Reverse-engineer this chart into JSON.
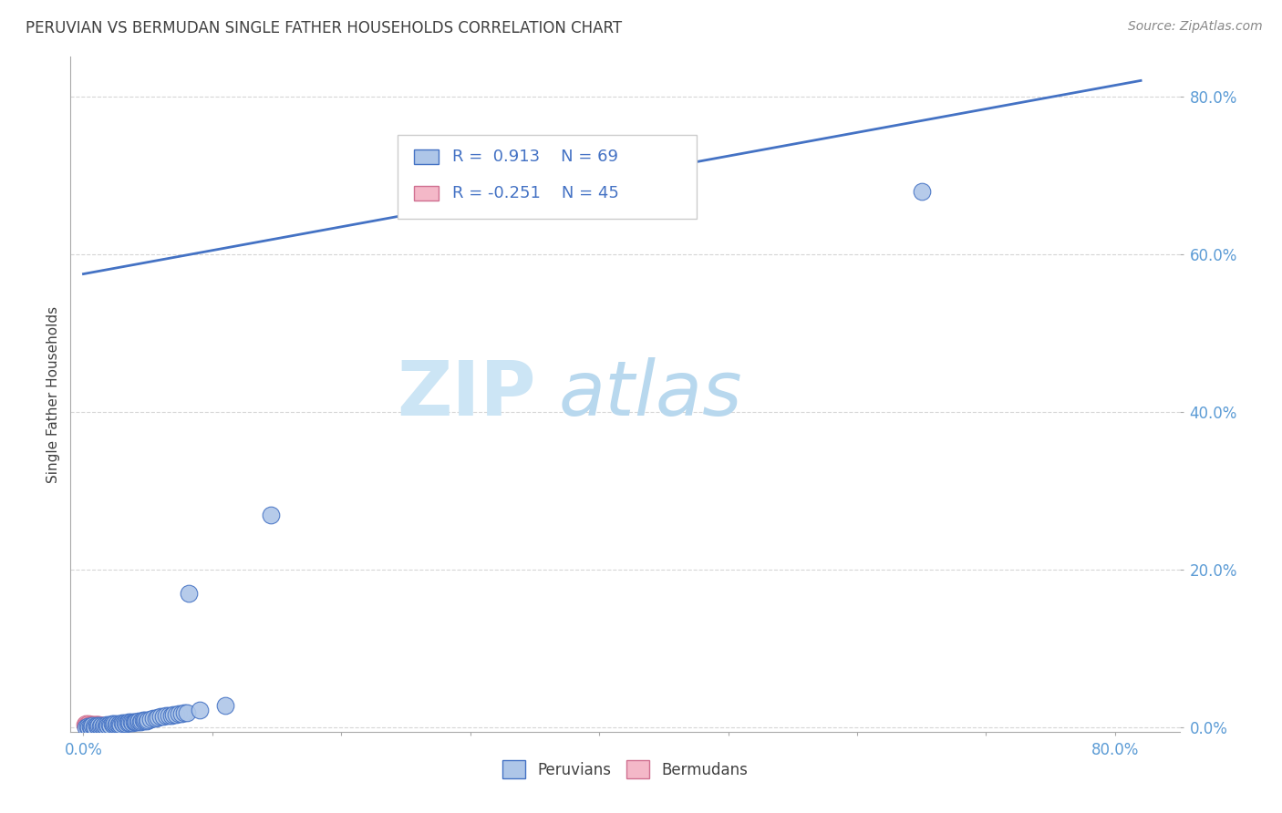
{
  "title": "PERUVIAN VS BERMUDAN SINGLE FATHER HOUSEHOLDS CORRELATION CHART",
  "source": "Source: ZipAtlas.com",
  "ylabel": "Single Father Households",
  "xlim": [
    -0.01,
    0.85
  ],
  "ylim": [
    -0.005,
    0.85
  ],
  "xtick_positions": [
    0.0,
    0.1,
    0.2,
    0.3,
    0.4,
    0.5,
    0.6,
    0.7,
    0.8
  ],
  "xtick_labels": [
    "0.0%",
    "",
    "",
    "",
    "",
    "",
    "",
    "",
    "80.0%"
  ],
  "ytick_positions": [
    0.0,
    0.2,
    0.4,
    0.6,
    0.8
  ],
  "ytick_labels": [
    "0.0%",
    "20.0%",
    "40.0%",
    "60.0%",
    "80.0%"
  ],
  "peruvian_R": 0.913,
  "peruvian_N": 69,
  "bermudan_R": -0.251,
  "bermudan_N": 45,
  "peruvian_color": "#aec6e8",
  "peruvian_edge_color": "#4472c4",
  "bermudan_color": "#f4b8c8",
  "bermudan_edge_color": "#d07090",
  "line_color": "#4472c4",
  "title_color": "#404040",
  "tick_color": "#5b9bd5",
  "ylabel_color": "#404040",
  "background_color": "#ffffff",
  "grid_color": "#cccccc",
  "watermark_zip_color": "#cce5f5",
  "watermark_atlas_color": "#b8d8ee",
  "legend_box_color": "#4472c4",
  "legend_r_color": "#4472c4",
  "peruvians_scatter": [
    [
      0.002,
      0.001
    ],
    [
      0.003,
      0.002
    ],
    [
      0.004,
      0.001
    ],
    [
      0.005,
      0.002
    ],
    [
      0.006,
      0.001
    ],
    [
      0.007,
      0.003
    ],
    [
      0.008,
      0.002
    ],
    [
      0.009,
      0.001
    ],
    [
      0.01,
      0.003
    ],
    [
      0.011,
      0.002
    ],
    [
      0.012,
      0.003
    ],
    [
      0.013,
      0.002
    ],
    [
      0.014,
      0.003
    ],
    [
      0.015,
      0.002
    ],
    [
      0.016,
      0.003
    ],
    [
      0.017,
      0.002
    ],
    [
      0.018,
      0.004
    ],
    [
      0.019,
      0.003
    ],
    [
      0.02,
      0.004
    ],
    [
      0.021,
      0.003
    ],
    [
      0.022,
      0.005
    ],
    [
      0.023,
      0.004
    ],
    [
      0.024,
      0.005
    ],
    [
      0.025,
      0.004
    ],
    [
      0.026,
      0.005
    ],
    [
      0.027,
      0.004
    ],
    [
      0.028,
      0.005
    ],
    [
      0.029,
      0.004
    ],
    [
      0.03,
      0.006
    ],
    [
      0.031,
      0.005
    ],
    [
      0.032,
      0.006
    ],
    [
      0.033,
      0.005
    ],
    [
      0.034,
      0.006
    ],
    [
      0.035,
      0.007
    ],
    [
      0.036,
      0.006
    ],
    [
      0.037,
      0.007
    ],
    [
      0.038,
      0.006
    ],
    [
      0.039,
      0.007
    ],
    [
      0.04,
      0.008
    ],
    [
      0.041,
      0.007
    ],
    [
      0.042,
      0.008
    ],
    [
      0.043,
      0.009
    ],
    [
      0.044,
      0.008
    ],
    [
      0.045,
      0.009
    ],
    [
      0.046,
      0.01
    ],
    [
      0.047,
      0.009
    ],
    [
      0.048,
      0.01
    ],
    [
      0.049,
      0.009
    ],
    [
      0.05,
      0.01
    ],
    [
      0.052,
      0.011
    ],
    [
      0.054,
      0.012
    ],
    [
      0.056,
      0.012
    ],
    [
      0.058,
      0.013
    ],
    [
      0.06,
      0.014
    ],
    [
      0.062,
      0.014
    ],
    [
      0.064,
      0.015
    ],
    [
      0.066,
      0.016
    ],
    [
      0.068,
      0.016
    ],
    [
      0.07,
      0.017
    ],
    [
      0.072,
      0.017
    ],
    [
      0.074,
      0.018
    ],
    [
      0.076,
      0.018
    ],
    [
      0.078,
      0.019
    ],
    [
      0.08,
      0.019
    ],
    [
      0.09,
      0.023
    ],
    [
      0.11,
      0.028
    ],
    [
      0.145,
      0.27
    ],
    [
      0.082,
      0.17
    ],
    [
      0.65,
      0.68
    ]
  ],
  "bermudans_scatter": [
    [
      0.001,
      0.004
    ],
    [
      0.002,
      0.005
    ],
    [
      0.002,
      0.003
    ],
    [
      0.003,
      0.004
    ],
    [
      0.003,
      0.003
    ],
    [
      0.004,
      0.005
    ],
    [
      0.004,
      0.003
    ],
    [
      0.005,
      0.004
    ],
    [
      0.005,
      0.003
    ],
    [
      0.006,
      0.004
    ],
    [
      0.006,
      0.003
    ],
    [
      0.007,
      0.004
    ],
    [
      0.007,
      0.003
    ],
    [
      0.008,
      0.004
    ],
    [
      0.008,
      0.003
    ],
    [
      0.009,
      0.004
    ],
    [
      0.009,
      0.003
    ],
    [
      0.01,
      0.004
    ],
    [
      0.01,
      0.003
    ],
    [
      0.011,
      0.004
    ],
    [
      0.011,
      0.003
    ],
    [
      0.012,
      0.004
    ],
    [
      0.012,
      0.003
    ],
    [
      0.013,
      0.003
    ],
    [
      0.013,
      0.002
    ],
    [
      0.014,
      0.003
    ],
    [
      0.014,
      0.002
    ],
    [
      0.015,
      0.003
    ],
    [
      0.015,
      0.002
    ],
    [
      0.016,
      0.003
    ],
    [
      0.016,
      0.002
    ],
    [
      0.017,
      0.003
    ],
    [
      0.017,
      0.002
    ],
    [
      0.018,
      0.003
    ],
    [
      0.018,
      0.002
    ],
    [
      0.019,
      0.003
    ],
    [
      0.019,
      0.002
    ],
    [
      0.02,
      0.003
    ],
    [
      0.02,
      0.002
    ],
    [
      0.021,
      0.003
    ],
    [
      0.021,
      0.002
    ],
    [
      0.022,
      0.002
    ],
    [
      0.023,
      0.002
    ],
    [
      0.024,
      0.002
    ],
    [
      0.025,
      0.002
    ]
  ],
  "reg_line_x0": 0.0,
  "reg_line_y0": 0.575,
  "reg_line_x1": 0.82,
  "reg_line_y1": 0.82,
  "title_fontsize": 12,
  "source_fontsize": 10,
  "tick_fontsize": 12,
  "ylabel_fontsize": 11,
  "legend_fontsize": 13,
  "watermark_fontsize": 60
}
